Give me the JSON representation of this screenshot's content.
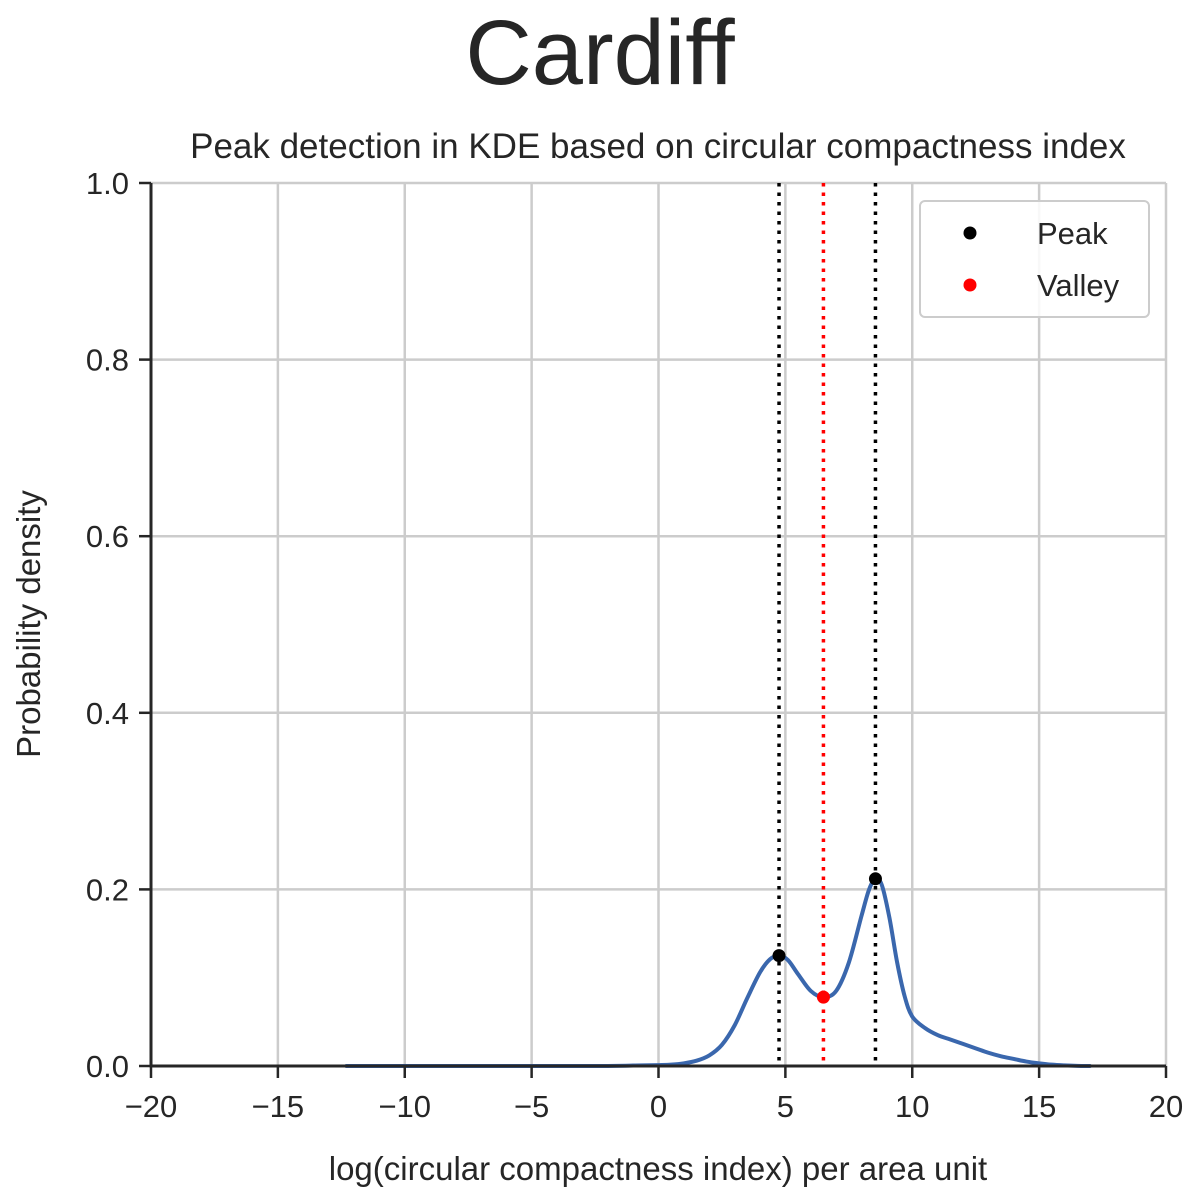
{
  "chart_data": {
    "type": "line",
    "suptitle": "Cardiff",
    "title": "Peak detection in KDE based on circular compactness index",
    "xlabel": "log(circular compactness index) per area unit",
    "ylabel": "Probability density",
    "xlim": [
      -20,
      20
    ],
    "ylim": [
      0,
      1.0
    ],
    "x_ticks": [
      -20,
      -15,
      -10,
      -5,
      0,
      5,
      10,
      15,
      20
    ],
    "x_tick_labels": [
      "−20",
      "−15",
      "−10",
      "−5",
      "0",
      "5",
      "10",
      "15",
      "20"
    ],
    "y_ticks": [
      0.0,
      0.2,
      0.4,
      0.6,
      0.8,
      1.0
    ],
    "y_tick_labels": [
      "0.0",
      "0.2",
      "0.4",
      "0.6",
      "0.8",
      "1.0"
    ],
    "grid": true,
    "legend_position": "top-right",
    "colors": {
      "kde": "#3a67ad",
      "peak": "#000000",
      "valley": "#ff0000",
      "grid": "#cccccc",
      "axis": "#262626"
    },
    "series": [
      {
        "name": "KDE",
        "x": [
          -12.3,
          -10,
          -8,
          -6,
          -4,
          -2,
          -1,
          0,
          0.5,
          1,
          1.5,
          2,
          2.5,
          3,
          3.5,
          4,
          4.4,
          4.75,
          5.1,
          5.5,
          6,
          6.5,
          7,
          7.5,
          8,
          8.3,
          8.55,
          8.8,
          9.1,
          9.4,
          9.7,
          10,
          10.5,
          11,
          11.5,
          12,
          12.5,
          13,
          13.5,
          14,
          14.5,
          15,
          15.5,
          16,
          16.5,
          17
        ],
        "y": [
          0.0,
          0.0,
          0.0,
          0.0,
          0.0,
          0.0,
          0.0005,
          0.001,
          0.0015,
          0.003,
          0.006,
          0.012,
          0.024,
          0.046,
          0.077,
          0.106,
          0.121,
          0.125,
          0.12,
          0.104,
          0.085,
          0.078,
          0.085,
          0.117,
          0.17,
          0.2,
          0.212,
          0.205,
          0.168,
          0.118,
          0.079,
          0.056,
          0.043,
          0.035,
          0.03,
          0.025,
          0.02,
          0.015,
          0.011,
          0.008,
          0.005,
          0.003,
          0.0015,
          0.0007,
          0.0002,
          0.0
        ]
      }
    ],
    "peaks": [
      {
        "x": 4.75,
        "y": 0.125
      },
      {
        "x": 8.55,
        "y": 0.212
      }
    ],
    "valleys": [
      {
        "x": 6.5,
        "y": 0.078
      }
    ],
    "legend": [
      {
        "label": "Peak",
        "color": "#000000"
      },
      {
        "label": "Valley",
        "color": "#ff0000"
      }
    ]
  }
}
